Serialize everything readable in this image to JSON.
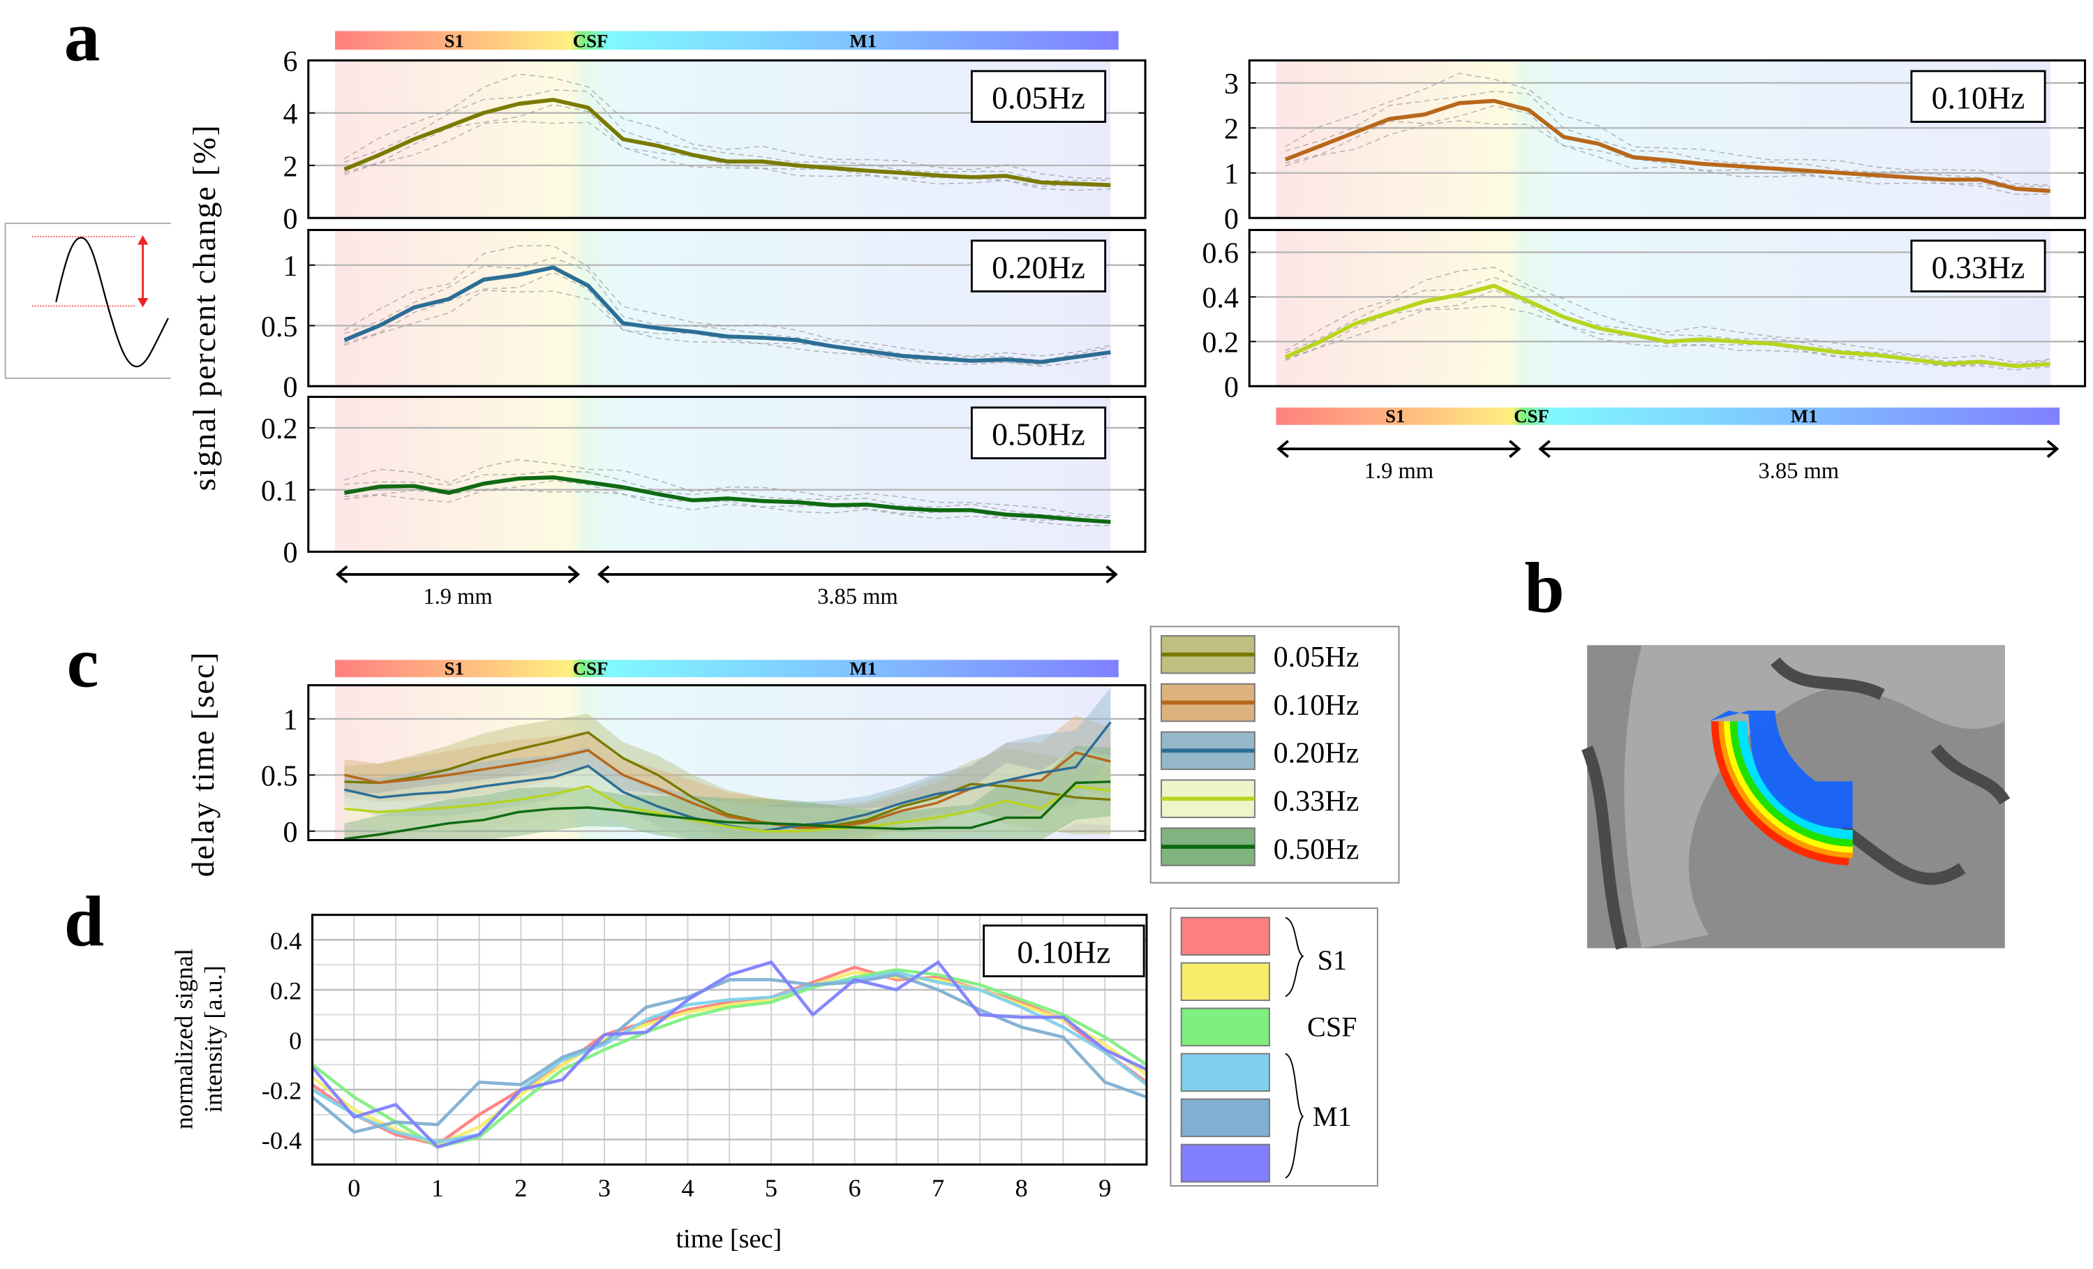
{
  "panel_letters": {
    "a": "a",
    "b": "b",
    "c": "c",
    "d": "d"
  },
  "regions": [
    "S1",
    "CSF",
    "M1"
  ],
  "dimensions": {
    "s1_width": "1.9 mm",
    "m1_width": "3.85 mm"
  },
  "colors": {
    "f005": "#7a7a00",
    "f010": "#b8671b",
    "f020": "#2b6e95",
    "f033": "#b7d41f",
    "f050": "#0f6a12",
    "s1_red": "#ff7f7f",
    "s1_yellow": "#f7ec6a",
    "csf_green": "#7fef7f",
    "m1_light": "#7fd0ec",
    "m1_steel": "#7fafd2",
    "m1_purple": "#7f7fff"
  },
  "chart_data": [
    {
      "type": "line",
      "id": "a",
      "ylabel": "signal percent change [%]",
      "panels": [
        {
          "label": "0.05Hz",
          "ylim": [
            0,
            6
          ],
          "yticks": [
            0,
            2,
            4,
            6
          ],
          "color": "#7a7a00",
          "values": [
            1.85,
            2.4,
            3.0,
            3.5,
            4.0,
            4.35,
            4.5,
            4.2,
            3.0,
            2.75,
            2.4,
            2.15,
            2.15,
            2.0,
            1.9,
            1.8,
            1.72,
            1.62,
            1.55,
            1.6,
            1.35,
            1.3,
            1.25
          ]
        },
        {
          "label": "0.20Hz",
          "ylim": [
            0,
            1.29
          ],
          "yticks": [
            0,
            0.5,
            1
          ],
          "color": "#2b6e95",
          "values": [
            0.38,
            0.5,
            0.65,
            0.72,
            0.88,
            0.92,
            0.98,
            0.83,
            0.52,
            0.48,
            0.45,
            0.41,
            0.4,
            0.38,
            0.33,
            0.29,
            0.25,
            0.23,
            0.21,
            0.22,
            0.2,
            0.24,
            0.28
          ]
        },
        {
          "label": "0.50Hz",
          "ylim": [
            0,
            0.25
          ],
          "yticks": [
            0,
            0.1,
            0.2
          ],
          "color": "#0f6a12",
          "values": [
            0.095,
            0.105,
            0.106,
            0.095,
            0.11,
            0.118,
            0.12,
            0.112,
            0.104,
            0.093,
            0.083,
            0.086,
            0.082,
            0.08,
            0.075,
            0.076,
            0.07,
            0.067,
            0.067,
            0.06,
            0.057,
            0.052,
            0.048
          ]
        },
        {
          "label": "0.10Hz",
          "ylim": [
            0,
            3.5
          ],
          "yticks": [
            0,
            1,
            2,
            3
          ],
          "color": "#b8671b",
          "values": [
            1.3,
            1.6,
            1.9,
            2.2,
            2.3,
            2.55,
            2.6,
            2.4,
            1.8,
            1.65,
            1.35,
            1.28,
            1.2,
            1.15,
            1.1,
            1.05,
            1.0,
            0.95,
            0.9,
            0.85,
            0.85,
            0.65,
            0.6
          ]
        },
        {
          "label": "0.33Hz",
          "ylim": [
            0,
            0.7
          ],
          "yticks": [
            0,
            0.2,
            0.4,
            0.6
          ],
          "color": "#b7d41f",
          "values": [
            0.13,
            0.2,
            0.28,
            0.33,
            0.38,
            0.41,
            0.45,
            0.38,
            0.31,
            0.26,
            0.23,
            0.2,
            0.21,
            0.2,
            0.19,
            0.17,
            0.15,
            0.14,
            0.12,
            0.1,
            0.11,
            0.09,
            0.1
          ]
        }
      ]
    },
    {
      "type": "area",
      "id": "c",
      "ylabel": "delay time [sec]",
      "ylim": [
        -0.08,
        1.3
      ],
      "yticks": [
        0,
        0.5,
        1
      ],
      "series": [
        {
          "name": "0.05Hz",
          "color": "#7a7a00",
          "band": "#bfbf7f",
          "values": [
            0.44,
            0.43,
            0.48,
            0.55,
            0.65,
            0.73,
            0.8,
            0.88,
            0.65,
            0.5,
            0.3,
            0.15,
            0.08,
            0.05,
            0.05,
            0.1,
            0.22,
            0.3,
            0.42,
            0.4,
            0.35,
            0.3,
            0.28
          ]
        },
        {
          "name": "0.10Hz",
          "color": "#b8671b",
          "band": "#dcb37f",
          "values": [
            0.5,
            0.43,
            0.46,
            0.5,
            0.55,
            0.6,
            0.65,
            0.72,
            0.5,
            0.38,
            0.25,
            0.13,
            0.08,
            0.03,
            0.03,
            0.08,
            0.18,
            0.25,
            0.38,
            0.45,
            0.45,
            0.7,
            0.62
          ]
        },
        {
          "name": "0.20Hz",
          "color": "#2b6e95",
          "band": "#95b7ca",
          "values": [
            0.37,
            0.3,
            0.33,
            0.35,
            0.4,
            0.44,
            0.48,
            0.58,
            0.35,
            0.22,
            0.12,
            0.05,
            0.0,
            0.05,
            0.08,
            0.15,
            0.25,
            0.33,
            0.38,
            0.45,
            0.52,
            0.57,
            0.97
          ]
        },
        {
          "name": "0.33Hz",
          "color": "#b7d41f",
          "band": "#eef5c8",
          "values": [
            0.2,
            0.17,
            0.19,
            0.21,
            0.24,
            0.28,
            0.33,
            0.4,
            0.22,
            0.16,
            0.1,
            0.04,
            0.0,
            0.0,
            0.02,
            0.04,
            0.08,
            0.12,
            0.18,
            0.27,
            0.2,
            0.4,
            0.36
          ]
        },
        {
          "name": "0.50Hz",
          "color": "#0f6a12",
          "band": "#7fb37f",
          "values": [
            -0.07,
            -0.03,
            0.02,
            0.07,
            0.1,
            0.17,
            0.2,
            0.21,
            0.18,
            0.14,
            0.11,
            0.08,
            0.07,
            0.06,
            0.04,
            0.03,
            0.02,
            0.03,
            0.03,
            0.12,
            0.12,
            0.43,
            0.44
          ]
        }
      ]
    },
    {
      "type": "line",
      "id": "d",
      "title": "0.10Hz",
      "xlabel": "time [sec]",
      "ylabel_line1": "normalized signal",
      "ylabel_line2": "intensity [a.u.]",
      "xlim": [
        -0.5,
        9.5
      ],
      "ylim": [
        -0.5,
        0.5
      ],
      "xticks": [
        0,
        1,
        2,
        3,
        4,
        5,
        6,
        7,
        8,
        9
      ],
      "yticks": [
        -0.4,
        -0.2,
        0,
        0.2,
        0.4
      ],
      "x": [
        -0.5,
        0,
        0.5,
        1,
        1.5,
        2,
        2.5,
        3,
        3.5,
        4,
        4.5,
        5,
        5.5,
        6,
        6.5,
        7,
        7.5,
        8,
        8.5,
        9,
        9.5
      ],
      "legend_groups": [
        "S1",
        "CSF",
        "M1"
      ],
      "series": [
        {
          "group": "S1",
          "color": "#ff7f7f",
          "values": [
            -0.18,
            -0.3,
            -0.38,
            -0.42,
            -0.3,
            -0.2,
            -0.1,
            0.02,
            0.07,
            0.12,
            0.15,
            0.17,
            0.23,
            0.29,
            0.24,
            0.25,
            0.2,
            0.15,
            0.08,
            -0.05,
            -0.17
          ]
        },
        {
          "group": "S1",
          "color": "#f7ec6a",
          "values": [
            -0.15,
            -0.28,
            -0.36,
            -0.42,
            -0.35,
            -0.22,
            -0.1,
            0.0,
            0.06,
            0.11,
            0.14,
            0.16,
            0.22,
            0.27,
            0.25,
            0.24,
            0.2,
            0.14,
            0.08,
            -0.02,
            -0.14
          ]
        },
        {
          "group": "CSF",
          "color": "#7fef7f",
          "values": [
            -0.1,
            -0.23,
            -0.33,
            -0.43,
            -0.39,
            -0.25,
            -0.12,
            -0.04,
            0.03,
            0.09,
            0.13,
            0.15,
            0.21,
            0.25,
            0.28,
            0.26,
            0.22,
            0.16,
            0.1,
            0.01,
            -0.1
          ]
        },
        {
          "group": "M1",
          "color": "#7fd0ec",
          "values": [
            -0.2,
            -0.3,
            -0.37,
            -0.41,
            -0.38,
            -0.2,
            -0.08,
            -0.02,
            0.08,
            0.14,
            0.16,
            0.17,
            0.22,
            0.24,
            0.27,
            0.23,
            0.2,
            0.13,
            0.05,
            -0.05,
            -0.18
          ]
        },
        {
          "group": "M1",
          "color": "#7fafd2",
          "values": [
            -0.23,
            -0.37,
            -0.33,
            -0.34,
            -0.17,
            -0.18,
            -0.07,
            -0.01,
            0.13,
            0.17,
            0.24,
            0.24,
            0.22,
            0.23,
            0.26,
            0.2,
            0.12,
            0.05,
            0.01,
            -0.17,
            -0.23
          ]
        },
        {
          "group": "M1",
          "color": "#7f7fff",
          "values": [
            -0.11,
            -0.31,
            -0.26,
            -0.43,
            -0.38,
            -0.2,
            -0.16,
            0.02,
            0.03,
            0.16,
            0.26,
            0.31,
            0.1,
            0.24,
            0.2,
            0.31,
            0.1,
            0.09,
            0.09,
            -0.04,
            -0.12
          ]
        }
      ]
    }
  ]
}
